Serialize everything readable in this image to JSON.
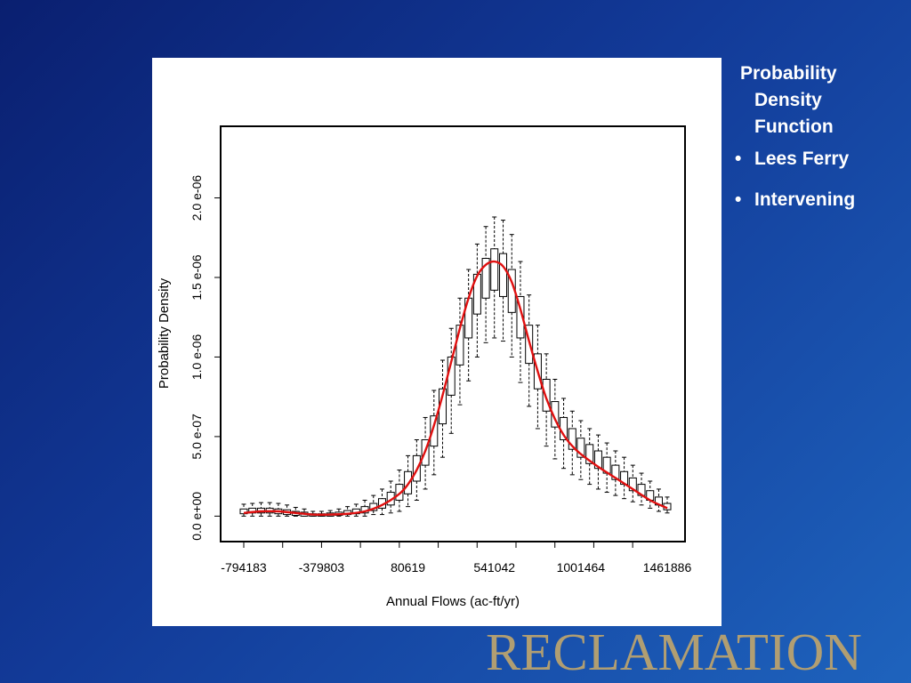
{
  "slide": {
    "heading_lines": [
      "Probability",
      "Density",
      "Function"
    ],
    "bullets": [
      "Lees Ferry",
      "Intervening"
    ],
    "bullet_glyph": "•",
    "logo_text": "RECLAMATION",
    "colors": {
      "logo": "#b19e72",
      "curve": "#e01010",
      "background": "#123a98"
    }
  },
  "chart_data": {
    "type": "boxplot-with-density-line",
    "xlabel": "Annual Flows (ac-ft/yr)",
    "ylabel": "Probability Density",
    "xticks": [
      -794183,
      -379803,
      80619,
      541042,
      1001464,
      1461886
    ],
    "xtick_labels": [
      "-794183",
      "-379803",
      "80619",
      "541042",
      "1001464",
      "1461886"
    ],
    "xlim": [
      -794183,
      1461886
    ],
    "yticks": [
      0,
      5e-07,
      1e-06,
      1.5e-06,
      2e-06
    ],
    "ytick_labels": [
      "0.0 e+00",
      "5.0 e-07",
      "1.0 e-06",
      "1.5 e-06",
      "2.0 e-06"
    ],
    "ylim": [
      -1.6e-07,
      2.45e-06
    ],
    "grid": false,
    "boxes": [
      {
        "x": -794183,
        "min": 0,
        "q1": 0.015,
        "q3": 0.045,
        "max": 0.075
      },
      {
        "x": -748124,
        "min": 0,
        "q1": 0.02,
        "q3": 0.05,
        "max": 0.08
      },
      {
        "x": -702065,
        "min": 0,
        "q1": 0.02,
        "q3": 0.05,
        "max": 0.085
      },
      {
        "x": -656006,
        "min": 0,
        "q1": 0.02,
        "q3": 0.05,
        "max": 0.085
      },
      {
        "x": -609947,
        "min": 0,
        "q1": 0.015,
        "q3": 0.045,
        "max": 0.08
      },
      {
        "x": -563888,
        "min": 0,
        "q1": 0.01,
        "q3": 0.04,
        "max": 0.07
      },
      {
        "x": -517829,
        "min": 0,
        "q1": 0.005,
        "q3": 0.03,
        "max": 0.055
      },
      {
        "x": -471771,
        "min": 0,
        "q1": 0.0,
        "q3": 0.025,
        "max": 0.045
      },
      {
        "x": -425712,
        "min": 0,
        "q1": 0.0,
        "q3": 0.015,
        "max": 0.03
      },
      {
        "x": -379803,
        "min": 0,
        "q1": 0.0,
        "q3": 0.015,
        "max": 0.03
      },
      {
        "x": -333594,
        "min": 0,
        "q1": 0.0,
        "q3": 0.02,
        "max": 0.035
      },
      {
        "x": -287535,
        "min": 0,
        "q1": 0.005,
        "q3": 0.025,
        "max": 0.045
      },
      {
        "x": -241476,
        "min": 0,
        "q1": 0.01,
        "q3": 0.035,
        "max": 0.06
      },
      {
        "x": -195417,
        "min": 0,
        "q1": 0.015,
        "q3": 0.045,
        "max": 0.075
      },
      {
        "x": -149358,
        "min": 0,
        "q1": 0.02,
        "q3": 0.06,
        "max": 0.1
      },
      {
        "x": -103299,
        "min": 0.01,
        "q1": 0.035,
        "q3": 0.08,
        "max": 0.13
      },
      {
        "x": -57240,
        "min": 0.01,
        "q1": 0.05,
        "q3": 0.11,
        "max": 0.17
      },
      {
        "x": -11181,
        "min": 0.02,
        "q1": 0.07,
        "q3": 0.15,
        "max": 0.22
      },
      {
        "x": 34878,
        "min": 0.03,
        "q1": 0.1,
        "q3": 0.2,
        "max": 0.29
      },
      {
        "x": 80619,
        "min": 0.06,
        "q1": 0.14,
        "q3": 0.28,
        "max": 0.38
      },
      {
        "x": 126996,
        "min": 0.1,
        "q1": 0.22,
        "q3": 0.38,
        "max": 0.48
      },
      {
        "x": 173055,
        "min": 0.17,
        "q1": 0.32,
        "q3": 0.48,
        "max": 0.62
      },
      {
        "x": 219114,
        "min": 0.26,
        "q1": 0.44,
        "q3": 0.63,
        "max": 0.79
      },
      {
        "x": 265173,
        "min": 0.37,
        "q1": 0.58,
        "q3": 0.8,
        "max": 0.98
      },
      {
        "x": 311232,
        "min": 0.52,
        "q1": 0.76,
        "q3": 1.0,
        "max": 1.18
      },
      {
        "x": 357291,
        "min": 0.7,
        "q1": 0.95,
        "q3": 1.2,
        "max": 1.37
      },
      {
        "x": 403350,
        "min": 0.85,
        "q1": 1.12,
        "q3": 1.37,
        "max": 1.55
      },
      {
        "x": 449409,
        "min": 1.0,
        "q1": 1.27,
        "q3": 1.52,
        "max": 1.71
      },
      {
        "x": 495468,
        "min": 1.09,
        "q1": 1.37,
        "q3": 1.62,
        "max": 1.82
      },
      {
        "x": 541042,
        "min": 1.12,
        "q1": 1.42,
        "q3": 1.68,
        "max": 1.88
      },
      {
        "x": 587586,
        "min": 1.1,
        "q1": 1.38,
        "q3": 1.65,
        "max": 1.86
      },
      {
        "x": 633645,
        "min": 1.0,
        "q1": 1.28,
        "q3": 1.55,
        "max": 1.77
      },
      {
        "x": 679704,
        "min": 0.84,
        "q1": 1.12,
        "q3": 1.38,
        "max": 1.6
      },
      {
        "x": 725763,
        "min": 0.69,
        "q1": 0.96,
        "q3": 1.2,
        "max": 1.39
      },
      {
        "x": 771822,
        "min": 0.55,
        "q1": 0.8,
        "q3": 1.02,
        "max": 1.2
      },
      {
        "x": 817881,
        "min": 0.44,
        "q1": 0.66,
        "q3": 0.86,
        "max": 1.02
      },
      {
        "x": 863940,
        "min": 0.36,
        "q1": 0.56,
        "q3": 0.72,
        "max": 0.86
      },
      {
        "x": 909999,
        "min": 0.3,
        "q1": 0.48,
        "q3": 0.62,
        "max": 0.74
      },
      {
        "x": 956058,
        "min": 0.26,
        "q1": 0.42,
        "q3": 0.55,
        "max": 0.66
      },
      {
        "x": 1001464,
        "min": 0.23,
        "q1": 0.37,
        "q3": 0.49,
        "max": 0.6
      },
      {
        "x": 1048176,
        "min": 0.2,
        "q1": 0.33,
        "q3": 0.45,
        "max": 0.55
      },
      {
        "x": 1094235,
        "min": 0.17,
        "q1": 0.3,
        "q3": 0.41,
        "max": 0.51
      },
      {
        "x": 1140294,
        "min": 0.15,
        "q1": 0.27,
        "q3": 0.37,
        "max": 0.46
      },
      {
        "x": 1186353,
        "min": 0.13,
        "q1": 0.23,
        "q3": 0.32,
        "max": 0.41
      },
      {
        "x": 1232412,
        "min": 0.11,
        "q1": 0.2,
        "q3": 0.28,
        "max": 0.37
      },
      {
        "x": 1278471,
        "min": 0.09,
        "q1": 0.16,
        "q3": 0.24,
        "max": 0.32
      },
      {
        "x": 1324530,
        "min": 0.07,
        "q1": 0.13,
        "q3": 0.2,
        "max": 0.27
      },
      {
        "x": 1370589,
        "min": 0.05,
        "q1": 0.1,
        "q3": 0.16,
        "max": 0.22
      },
      {
        "x": 1416648,
        "min": 0.03,
        "q1": 0.07,
        "q3": 0.12,
        "max": 0.17
      },
      {
        "x": 1461886,
        "min": 0.02,
        "q1": 0.04,
        "q3": 0.08,
        "max": 0.12
      }
    ],
    "box_value_unit": 1e-06,
    "density_curve": {
      "x": [
        -794183,
        -702065,
        -609947,
        -517829,
        -425712,
        -333594,
        -241476,
        -149358,
        -57240,
        34878,
        80619,
        126996,
        173055,
        219114,
        265173,
        311232,
        357291,
        403350,
        449409,
        495468,
        541042,
        587586,
        633645,
        679704,
        725763,
        771822,
        817881,
        863940,
        909999,
        956058,
        1001464,
        1094235,
        1186353,
        1278471,
        1370589,
        1461886
      ],
      "y": [
        0.02,
        0.03,
        0.03,
        0.02,
        0.01,
        0.01,
        0.015,
        0.03,
        0.07,
        0.14,
        0.2,
        0.29,
        0.41,
        0.57,
        0.76,
        0.97,
        1.18,
        1.37,
        1.51,
        1.58,
        1.6,
        1.57,
        1.47,
        1.3,
        1.1,
        0.91,
        0.74,
        0.61,
        0.51,
        0.44,
        0.39,
        0.31,
        0.24,
        0.17,
        0.1,
        0.05
      ],
      "unit": 1e-06
    }
  }
}
